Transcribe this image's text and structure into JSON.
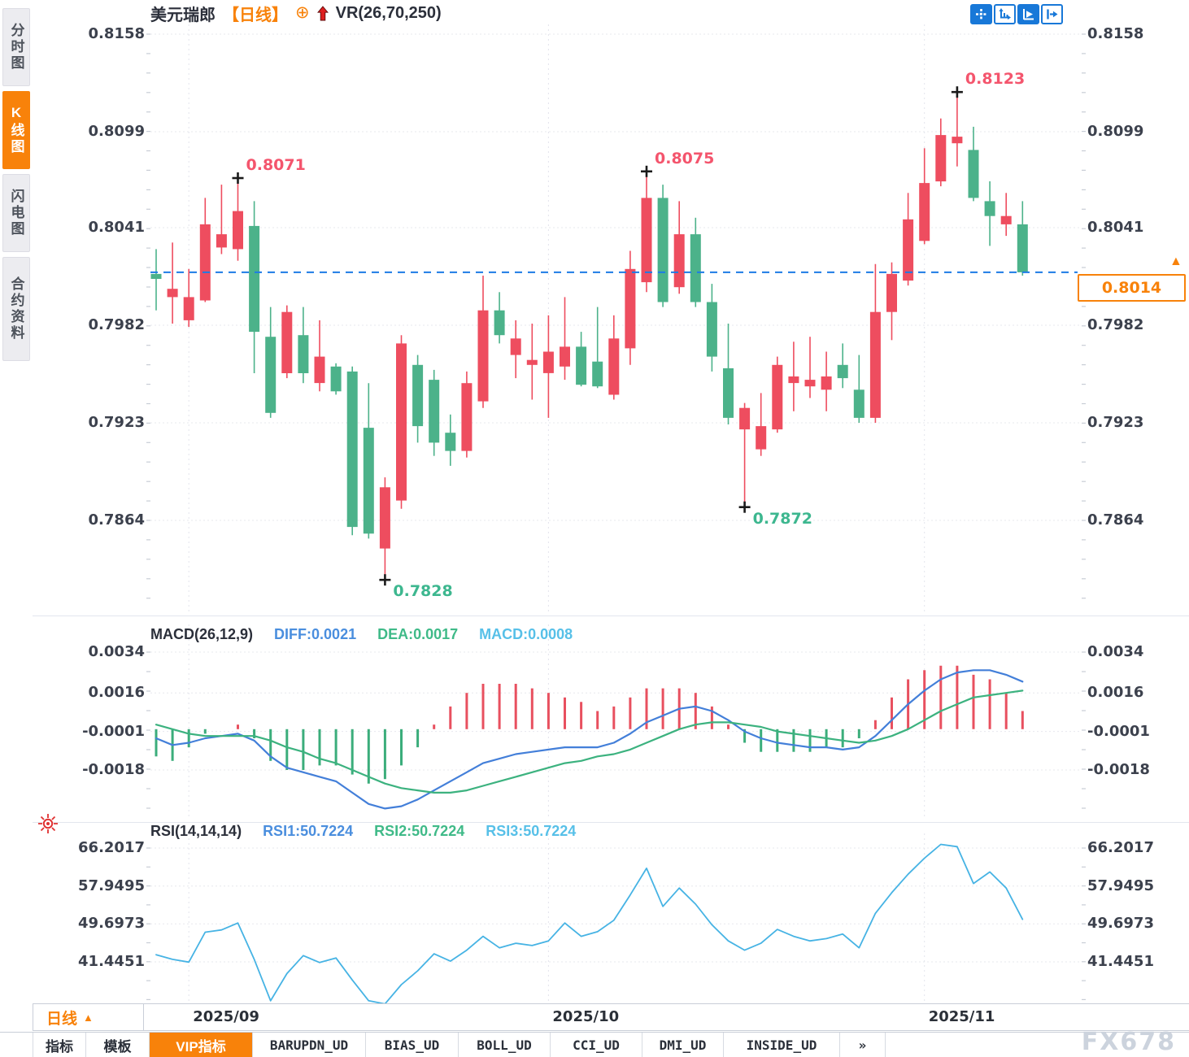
{
  "header": {
    "symbol": "美元瑞郎",
    "period_tag": "【日线】",
    "link_icon": "⊕",
    "overlay_indicator": "VR(26,70,250)"
  },
  "sidebar": {
    "items": [
      {
        "label": "分时图",
        "active": false
      },
      {
        "label": "K线图",
        "active": true
      },
      {
        "label": "闪电图",
        "active": false
      },
      {
        "label": "合约资料",
        "active": false
      }
    ]
  },
  "toolbar": {
    "icons": [
      "pan-crosshair-icon",
      "axis-range-icon",
      "auto-fit-icon",
      "jump-to-latest-icon"
    ]
  },
  "bottom_left": {
    "period": "日线",
    "arrow": "▲"
  },
  "bottom_tabs": [
    {
      "label": "指标",
      "active": false,
      "mono": false
    },
    {
      "label": "模板",
      "active": false,
      "mono": false
    },
    {
      "label": "VIP指标",
      "active": true,
      "mono": false
    },
    {
      "label": "BARUPDN_UD",
      "active": false,
      "mono": true
    },
    {
      "label": "BIAS_UD",
      "active": false,
      "mono": true
    },
    {
      "label": "BOLL_UD",
      "active": false,
      "mono": true
    },
    {
      "label": "CCI_UD",
      "active": false,
      "mono": true
    },
    {
      "label": "DMI_UD",
      "active": false,
      "mono": true
    },
    {
      "label": "INSIDE_UD",
      "active": false,
      "mono": true
    },
    {
      "label": "»",
      "active": false,
      "mono": true
    }
  ],
  "watermark": "FX678",
  "chart_data": {
    "type": "candlestick",
    "symbol": "美元瑞郎",
    "period": "日线",
    "colors": {
      "up": "#ee4d5f",
      "down": "#4cb28a",
      "hist_up": "#e8505f",
      "hist_down": "#3bad7b",
      "diff_line": "#437fd9",
      "dea_line": "#3cb27f",
      "rsi_line": "#46b3e4",
      "price_line": "#1d7be5",
      "accent_orange": "#f8820a",
      "grid": "#e7e8ee",
      "vgrid": "#e3e4ec",
      "tick": "#c8cdd6",
      "marker": "#1a1a1a",
      "ann_high": "#f4556d",
      "ann_low": "#3db78f"
    },
    "y_ticks_price": [
      "0.8158",
      "0.8099",
      "0.8041",
      "0.7982",
      "0.7923",
      "0.7864"
    ],
    "x_gridlines": [
      {
        "label": "2025/09",
        "candle": 2
      },
      {
        "label": "2025/10",
        "candle": 24
      },
      {
        "label": "2025/11",
        "candle": 47
      }
    ],
    "current_price": 0.8014,
    "current_price_label": "0.8014",
    "annotations": [
      {
        "label": "0.8071",
        "candle": 5,
        "at": "high",
        "color": "#f4556d"
      },
      {
        "label": "0.8075",
        "candle": 30,
        "at": "high",
        "color": "#f4556d"
      },
      {
        "label": "0.8123",
        "candle": 49,
        "at": "high",
        "color": "#f4556d"
      },
      {
        "label": "0.7828",
        "candle": 14,
        "at": "low",
        "color": "#3db78f"
      },
      {
        "label": "0.7872",
        "candle": 36,
        "at": "low",
        "color": "#3db78f"
      }
    ],
    "candles": [
      [
        0.8013,
        0.8028,
        0.7991,
        0.801
      ],
      [
        0.7999,
        0.8032,
        0.7983,
        0.8004
      ],
      [
        0.7985,
        0.8016,
        0.7981,
        0.7999
      ],
      [
        0.7997,
        0.8059,
        0.7996,
        0.8043
      ],
      [
        0.8029,
        0.8067,
        0.8025,
        0.8037
      ],
      [
        0.8028,
        0.8071,
        0.8021,
        0.8051
      ],
      [
        0.8042,
        0.8057,
        0.7953,
        0.7978
      ],
      [
        0.7975,
        0.7993,
        0.7926,
        0.7929
      ],
      [
        0.7953,
        0.7994,
        0.795,
        0.799
      ],
      [
        0.7976,
        0.7993,
        0.7947,
        0.7953
      ],
      [
        0.7947,
        0.7985,
        0.7942,
        0.7963
      ],
      [
        0.7957,
        0.7959,
        0.794,
        0.7942
      ],
      [
        0.7954,
        0.7957,
        0.7855,
        0.786
      ],
      [
        0.792,
        0.7947,
        0.7853,
        0.7856
      ],
      [
        0.7847,
        0.789,
        0.7828,
        0.7884
      ],
      [
        0.7876,
        0.7976,
        0.7871,
        0.7971
      ],
      [
        0.7958,
        0.7964,
        0.7911,
        0.7921
      ],
      [
        0.7949,
        0.7955,
        0.7903,
        0.7911
      ],
      [
        0.7917,
        0.7928,
        0.7897,
        0.7906
      ],
      [
        0.7906,
        0.7954,
        0.7902,
        0.7947
      ],
      [
        0.7936,
        0.8012,
        0.7932,
        0.7991
      ],
      [
        0.7991,
        0.8002,
        0.7971,
        0.7976
      ],
      [
        0.7964,
        0.7985,
        0.795,
        0.7974
      ],
      [
        0.7958,
        0.7983,
        0.7937,
        0.7961
      ],
      [
        0.7953,
        0.7988,
        0.7926,
        0.7966
      ],
      [
        0.7957,
        0.7999,
        0.7949,
        0.7969
      ],
      [
        0.7969,
        0.7978,
        0.7945,
        0.7946
      ],
      [
        0.796,
        0.7993,
        0.7944,
        0.7945
      ],
      [
        0.794,
        0.7988,
        0.7937,
        0.7974
      ],
      [
        0.7968,
        0.8027,
        0.7958,
        0.8016
      ],
      [
        0.8008,
        0.8075,
        0.8002,
        0.8059
      ],
      [
        0.8059,
        0.8067,
        0.7993,
        0.7996
      ],
      [
        0.8005,
        0.8057,
        0.8001,
        0.8037
      ],
      [
        0.8037,
        0.8047,
        0.7993,
        0.7996
      ],
      [
        0.7996,
        0.8007,
        0.7954,
        0.7963
      ],
      [
        0.7956,
        0.7983,
        0.7922,
        0.7926
      ],
      [
        0.7919,
        0.7935,
        0.7872,
        0.7932
      ],
      [
        0.7907,
        0.7941,
        0.7903,
        0.7921
      ],
      [
        0.7919,
        0.7963,
        0.7917,
        0.7958
      ],
      [
        0.7947,
        0.7972,
        0.793,
        0.7951
      ],
      [
        0.7945,
        0.7975,
        0.7938,
        0.7949
      ],
      [
        0.7943,
        0.7966,
        0.793,
        0.7951
      ],
      [
        0.7958,
        0.7971,
        0.7944,
        0.795
      ],
      [
        0.7943,
        0.7964,
        0.7923,
        0.7926
      ],
      [
        0.7926,
        0.8019,
        0.7923,
        0.799
      ],
      [
        0.799,
        0.802,
        0.7973,
        0.8013
      ],
      [
        0.8009,
        0.8062,
        0.8006,
        0.8046
      ],
      [
        0.8033,
        0.8089,
        0.8031,
        0.8068
      ],
      [
        0.8069,
        0.8107,
        0.8066,
        0.8097
      ],
      [
        0.8092,
        0.8123,
        0.8078,
        0.8096
      ],
      [
        0.8088,
        0.8102,
        0.8057,
        0.8059
      ],
      [
        0.8057,
        0.8069,
        0.803,
        0.8048
      ],
      [
        0.8043,
        0.8062,
        0.8036,
        0.8048
      ],
      [
        0.8043,
        0.8057,
        0.8012,
        0.8014
      ]
    ],
    "macd": {
      "title": "MACD(26,12,9)",
      "diff_label": "DIFF:0.0021",
      "dea_label": "DEA:0.0017",
      "macd_label": "MACD:0.0008",
      "y_ticks": [
        "0.0034",
        "0.0016",
        "-0.0001",
        "-0.0018"
      ],
      "diff": [
        -0.0004,
        -0.0007,
        -0.0006,
        -0.0004,
        -0.0003,
        -0.0002,
        -0.0005,
        -0.0012,
        -0.0017,
        -0.0019,
        -0.0021,
        -0.0023,
        -0.0028,
        -0.0033,
        -0.0035,
        -0.0034,
        -0.0031,
        -0.0027,
        -0.0023,
        -0.0019,
        -0.0015,
        -0.0013,
        -0.0011,
        -0.001,
        -0.0009,
        -0.0008,
        -0.0008,
        -0.0008,
        -0.0006,
        -0.0002,
        0.0003,
        0.0006,
        0.0009,
        0.001,
        0.0008,
        0.0004,
        -0.0001,
        -0.0004,
        -0.0006,
        -0.0007,
        -0.0008,
        -0.0008,
        -0.0009,
        -0.0008,
        -0.0003,
        0.0004,
        0.0011,
        0.0017,
        0.0022,
        0.0025,
        0.0026,
        0.0026,
        0.0024,
        0.0021
      ],
      "dea": [
        0.0002,
        0.0,
        -0.0002,
        -0.0003,
        -0.0003,
        -0.0003,
        -0.0003,
        -0.0005,
        -0.0008,
        -0.001,
        -0.0013,
        -0.0015,
        -0.0018,
        -0.0021,
        -0.0024,
        -0.0026,
        -0.0027,
        -0.0028,
        -0.0028,
        -0.0027,
        -0.0025,
        -0.0023,
        -0.0021,
        -0.0019,
        -0.0017,
        -0.0015,
        -0.0014,
        -0.0012,
        -0.0011,
        -0.0009,
        -0.0006,
        -0.0003,
        0.0,
        0.0002,
        0.0003,
        0.0003,
        0.0002,
        0.0001,
        -0.0001,
        -0.0002,
        -0.0003,
        -0.0004,
        -0.0005,
        -0.0006,
        -0.0005,
        -0.0003,
        0.0,
        0.0004,
        0.0008,
        0.0011,
        0.0014,
        0.0015,
        0.0016,
        0.0017
      ]
    },
    "rsi": {
      "title": "RSI(14,14,14)",
      "rsi1_label": "RSI1:50.7224",
      "rsi2_label": "RSI2:50.7224",
      "rsi3_label": "RSI3:50.7224",
      "y_ticks": [
        "66.2017",
        "57.9495",
        "49.6973",
        "41.4451"
      ],
      "values": [
        43.0,
        42.0,
        41.4,
        47.9,
        48.4,
        49.9,
        42.0,
        33.0,
        38.9,
        42.8,
        41.3,
        42.3,
        37.5,
        33.0,
        32.3,
        36.5,
        39.5,
        43.2,
        41.6,
        44.0,
        47.0,
        44.5,
        45.5,
        45.0,
        46.0,
        49.9,
        47.0,
        48.0,
        50.5,
        56.0,
        61.8,
        53.5,
        57.5,
        54.0,
        49.5,
        46.0,
        44.0,
        45.5,
        48.5,
        47.0,
        46.0,
        46.5,
        47.5,
        44.5,
        52.0,
        56.5,
        60.5,
        64.0,
        67.0,
        66.5,
        58.5,
        61.0,
        57.5,
        50.7
      ]
    }
  }
}
